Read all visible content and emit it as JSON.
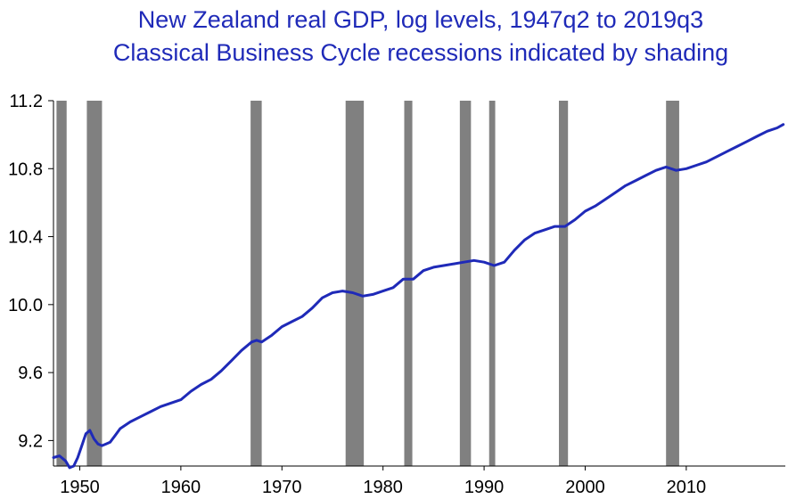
{
  "chart_data": {
    "type": "line",
    "title": "New Zealand real GDP, log levels, 1947q2 to 2019q3",
    "subtitle": "Classical Business Cycle recessions indicated by shading",
    "xlabel": "",
    "ylabel": "",
    "xlim": [
      1947.4,
      2019.8
    ],
    "ylim": [
      9.05,
      11.2
    ],
    "y_ticks": [
      9.2,
      9.6,
      10.0,
      10.4,
      10.8,
      11.2
    ],
    "y_tick_labels": [
      "9.2",
      "9.6",
      "10.0",
      "10.4",
      "10.8",
      "11.2"
    ],
    "x_ticks": [
      1950,
      1960,
      1970,
      1980,
      1990,
      2000,
      2010
    ],
    "x_tick_labels": [
      "1950",
      "1960",
      "1970",
      "1980",
      "1990",
      "2000",
      "2010"
    ],
    "grid": false,
    "legend": "none",
    "recession_shading": [
      {
        "start": 1947.7,
        "end": 1948.7
      },
      {
        "start": 1950.7,
        "end": 1952.2
      },
      {
        "start": 1966.9,
        "end": 1968.0
      },
      {
        "start": 1976.3,
        "end": 1978.1
      },
      {
        "start": 1982.1,
        "end": 1982.9
      },
      {
        "start": 1987.6,
        "end": 1988.7
      },
      {
        "start": 1990.5,
        "end": 1991.1
      },
      {
        "start": 1997.4,
        "end": 1998.3
      },
      {
        "start": 2008.0,
        "end": 2009.3
      }
    ],
    "series": [
      {
        "x": [
          1947.4,
          1948.0,
          1948.6,
          1949.0,
          1949.4,
          1949.8,
          1950.2,
          1950.6,
          1951.0,
          1951.4,
          1951.8,
          1952.2,
          1952.6,
          1953.0,
          1953.5,
          1954.0,
          1955.0,
          1956.0,
          1957.0,
          1958.0,
          1959.0,
          1960.0,
          1961.0,
          1962.0,
          1963.0,
          1964.0,
          1965.0,
          1966.0,
          1967.0,
          1967.5,
          1968.0,
          1969.0,
          1970.0,
          1971.0,
          1972.0,
          1973.0,
          1974.0,
          1975.0,
          1976.0,
          1977.0,
          1978.0,
          1979.0,
          1980.0,
          1981.0,
          1982.0,
          1983.0,
          1984.0,
          1985.0,
          1986.0,
          1987.0,
          1988.0,
          1989.0,
          1990.0,
          1991.0,
          1992.0,
          1993.0,
          1994.0,
          1995.0,
          1996.0,
          1997.0,
          1998.0,
          1999.0,
          2000.0,
          2001.0,
          2002.0,
          2003.0,
          2004.0,
          2005.0,
          2006.0,
          2007.0,
          2008.0,
          2009.0,
          2010.0,
          2011.0,
          2012.0,
          2013.0,
          2014.0,
          2015.0,
          2016.0,
          2017.0,
          2018.0,
          2019.0,
          2019.6
        ],
        "values": [
          9.1,
          9.11,
          9.08,
          9.04,
          9.05,
          9.1,
          9.17,
          9.24,
          9.26,
          9.21,
          9.18,
          9.17,
          9.18,
          9.19,
          9.23,
          9.27,
          9.31,
          9.34,
          9.37,
          9.4,
          9.42,
          9.44,
          9.49,
          9.53,
          9.56,
          9.61,
          9.67,
          9.73,
          9.78,
          9.79,
          9.78,
          9.82,
          9.87,
          9.9,
          9.93,
          9.98,
          10.04,
          10.07,
          10.08,
          10.07,
          10.05,
          10.06,
          10.08,
          10.1,
          10.15,
          10.15,
          10.2,
          10.22,
          10.23,
          10.24,
          10.25,
          10.26,
          10.25,
          10.23,
          10.25,
          10.32,
          10.38,
          10.42,
          10.44,
          10.46,
          10.46,
          10.5,
          10.55,
          10.58,
          10.62,
          10.66,
          10.7,
          10.73,
          10.76,
          10.79,
          10.81,
          10.79,
          10.8,
          10.82,
          10.84,
          10.87,
          10.9,
          10.93,
          10.96,
          10.99,
          11.02,
          11.04,
          11.06
        ]
      }
    ],
    "colors": {
      "line": "#1F2AB8",
      "shading": "#808080",
      "title": "#1F2AB8"
    }
  }
}
